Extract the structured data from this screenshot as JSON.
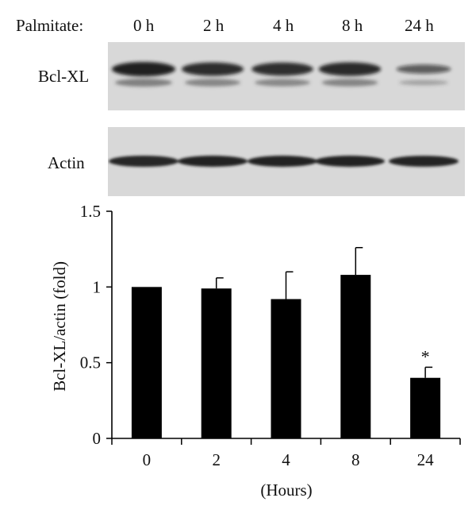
{
  "blot": {
    "treatment_label": "Palmitate:",
    "timepoints": [
      "0 h",
      "2 h",
      "4 h",
      "8 h",
      "24 h"
    ],
    "rows": [
      {
        "label": "Bcl-XL",
        "band_intensity": [
          1.0,
          0.9,
          0.88,
          0.92,
          0.45
        ]
      },
      {
        "label": "Actin",
        "band_intensity": [
          1.0,
          0.98,
          0.98,
          0.98,
          0.96
        ]
      }
    ]
  },
  "chart_data": {
    "type": "bar",
    "categories": [
      "0",
      "2",
      "4",
      "8",
      "24"
    ],
    "values": [
      1.0,
      0.99,
      0.92,
      1.08,
      0.4
    ],
    "error_plus": [
      0.0,
      0.07,
      0.18,
      0.18,
      0.07
    ],
    "annotations": [
      {
        "category": "24",
        "text": "*"
      }
    ],
    "xlabel": "(Hours)",
    "ylabel": "Bcl-XL/actin (fold)",
    "ylim": [
      0,
      1.5
    ],
    "yticks": [
      "0",
      "0.5",
      "1",
      "1.5"
    ],
    "grid": false,
    "bar_color": "#000000"
  }
}
